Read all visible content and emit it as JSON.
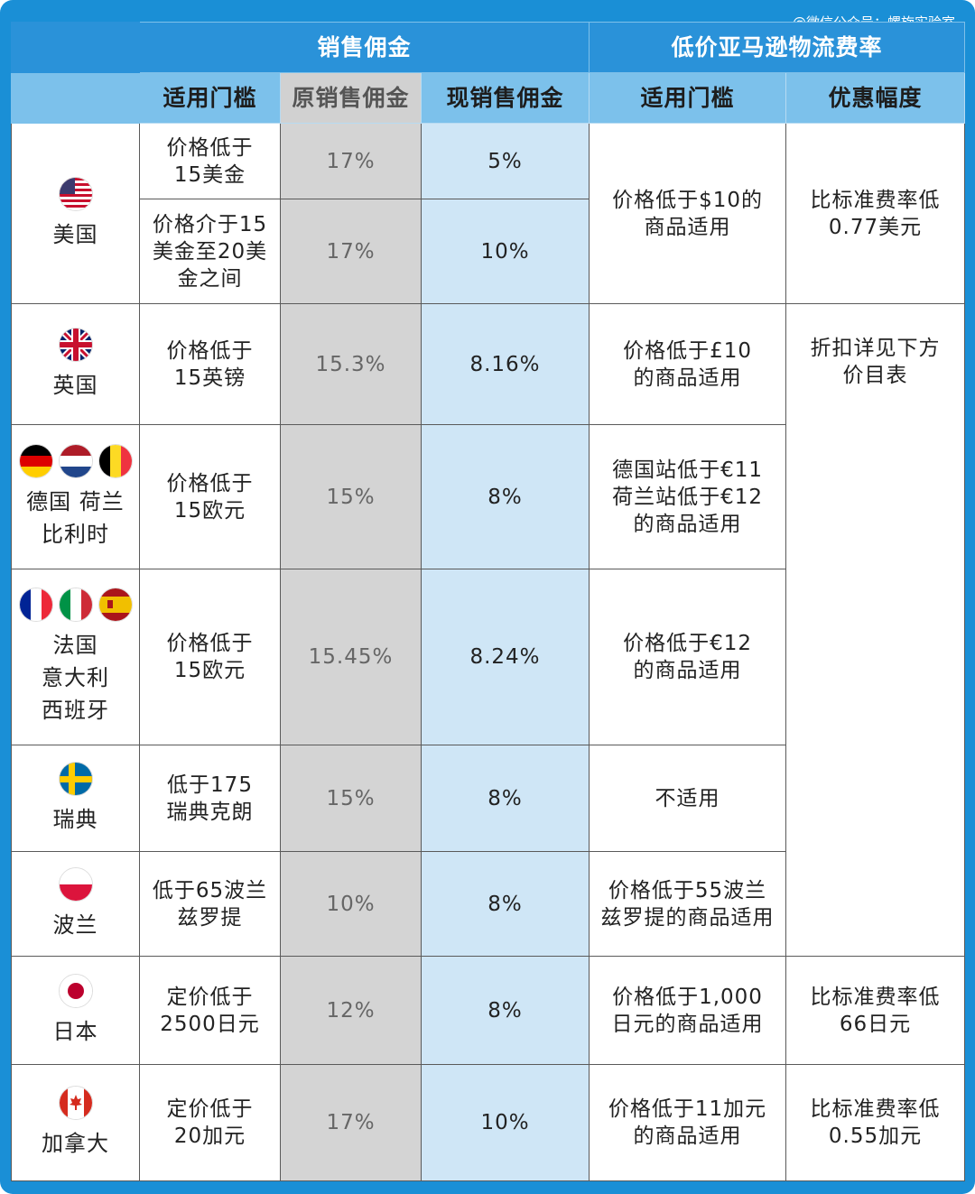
{
  "watermark": "@微信公众号：螺旋实验室",
  "header": {
    "group1": "销售佣金",
    "group2": "低价亚马逊物流费率",
    "cols": [
      "适用门槛",
      "原销售佣金",
      "现销售佣金",
      "适用门槛",
      "优惠幅度"
    ]
  },
  "rows": [
    {
      "country": "美国",
      "flags": [
        "us-flag-icon"
      ],
      "sub": [
        {
          "threshold": "价格低于\n15美金",
          "old": "17%",
          "new": "5%"
        },
        {
          "threshold": "价格介于15\n美金至20美\n金之间",
          "old": "17%",
          "new": "10%"
        }
      ],
      "fba_threshold": "价格低于$10的\n商品适用",
      "discount": "比标准费率低\n0.77美元"
    },
    {
      "country": "英国",
      "flags": [
        "uk-flag-icon"
      ],
      "threshold": "价格低于\n15英镑",
      "old": "15.3%",
      "new": "8.16%",
      "fba_threshold": "价格低于£10\n的商品适用",
      "discount": "折扣详见下方\n价目表"
    },
    {
      "country": "德国 荷兰\n比利时",
      "flags": [
        "germany-flag-icon",
        "netherlands-flag-icon",
        "belgium-flag-icon"
      ],
      "threshold": "价格低于\n15欧元",
      "old": "15%",
      "new": "8%",
      "fba_threshold": "德国站低于€11\n荷兰站低于€12\n的商品适用"
    },
    {
      "country": "法国\n意大利\n西班牙",
      "flags": [
        "france-flag-icon",
        "italy-flag-icon",
        "spain-flag-icon"
      ],
      "threshold": "价格低于\n15欧元",
      "old": "15.45%",
      "new": "8.24%",
      "fba_threshold": "价格低于€12\n的商品适用"
    },
    {
      "country": "瑞典",
      "flags": [
        "sweden-flag-icon"
      ],
      "threshold": "低于175\n瑞典克朗",
      "old": "15%",
      "new": "8%",
      "fba_threshold": "不适用"
    },
    {
      "country": "波兰",
      "flags": [
        "poland-flag-icon"
      ],
      "threshold": "低于65波兰\n兹罗提",
      "old": "10%",
      "new": "8%",
      "fba_threshold": "价格低于55波兰\n兹罗提的商品适用"
    },
    {
      "country": "日本",
      "flags": [
        "japan-flag-icon"
      ],
      "threshold": "定价低于\n2500日元",
      "old": "12%",
      "new": "8%",
      "fba_threshold": "价格低于1,000\n日元的商品适用",
      "discount": "比标准费率低\n66日元"
    },
    {
      "country": "加拿大",
      "flags": [
        "canada-flag-icon"
      ],
      "threshold": "定价低于\n20加元",
      "old": "17%",
      "new": "10%",
      "fba_threshold": "价格低于11加元\n的商品适用",
      "discount": "比标准费率低\n0.55加元"
    }
  ],
  "colors": {
    "frame": "#1a8fd6",
    "header_dark": "#2a92d9",
    "header_light": "#7cc1eb",
    "old_col": "#d4d4d4",
    "new_col": "#cfe6f6"
  }
}
